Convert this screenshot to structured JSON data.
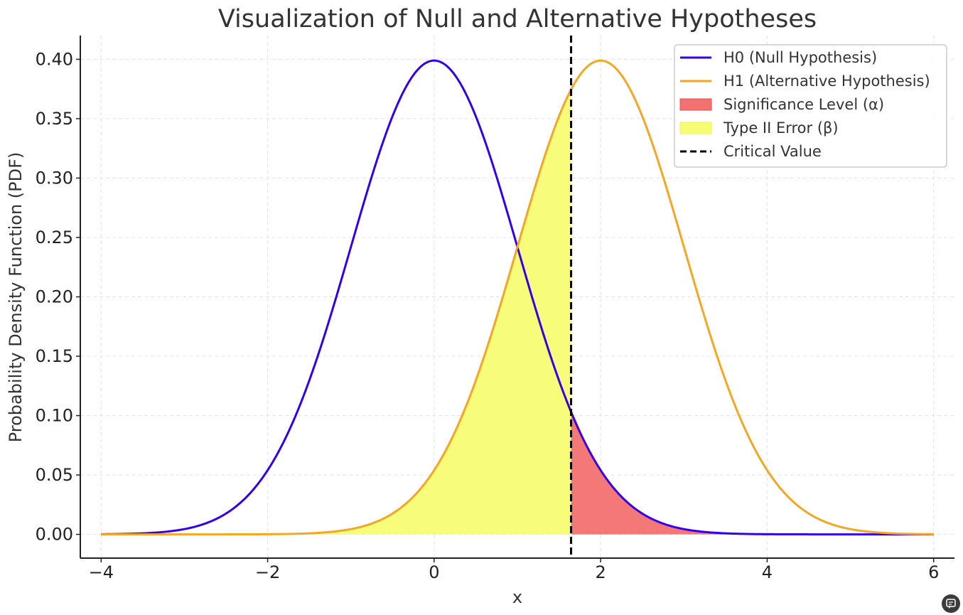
{
  "chart_data": {
    "type": "line",
    "title": "Visualization of Null and Alternative Hypotheses",
    "xlabel": "x",
    "ylabel": "Probability Density Function (PDF)",
    "xlim": [
      -4.25,
      6.25
    ],
    "ylim": [
      -0.02,
      0.42
    ],
    "xticks": [
      -4,
      -2,
      0,
      2,
      4,
      6
    ],
    "xtick_labels": [
      "−4",
      "−2",
      "0",
      "2",
      "4",
      "6"
    ],
    "yticks": [
      0.0,
      0.05,
      0.1,
      0.15,
      0.2,
      0.25,
      0.3,
      0.35,
      0.4
    ],
    "ytick_labels": [
      "0.00",
      "0.05",
      "0.10",
      "0.15",
      "0.20",
      "0.25",
      "0.30",
      "0.35",
      "0.40"
    ],
    "grid": true,
    "legend_position": "top-right",
    "series": [
      {
        "name": "H0 (Null Hypothesis)",
        "distribution": "normal",
        "mean": 0,
        "std": 1,
        "x_range": [
          -4,
          6
        ],
        "color": "#3300ee"
      },
      {
        "name": "H1 (Alternative Hypothesis)",
        "distribution": "normal",
        "mean": 2,
        "std": 1,
        "x_range": [
          -4,
          6
        ],
        "color": "#f5a623"
      }
    ],
    "fills": [
      {
        "name": "Significance Level (α)",
        "under": "H0 (Null Hypothesis)",
        "x_range": [
          1.645,
          6
        ],
        "color": "#f47171"
      },
      {
        "name": "Type II Error (β)",
        "under": "H1 (Alternative Hypothesis)",
        "x_range": [
          -4,
          1.645
        ],
        "color": "#f8fc74"
      }
    ],
    "vlines": [
      {
        "name": "Critical Value",
        "x": 1.645,
        "style": "dashed",
        "color": "#000000"
      }
    ]
  }
}
